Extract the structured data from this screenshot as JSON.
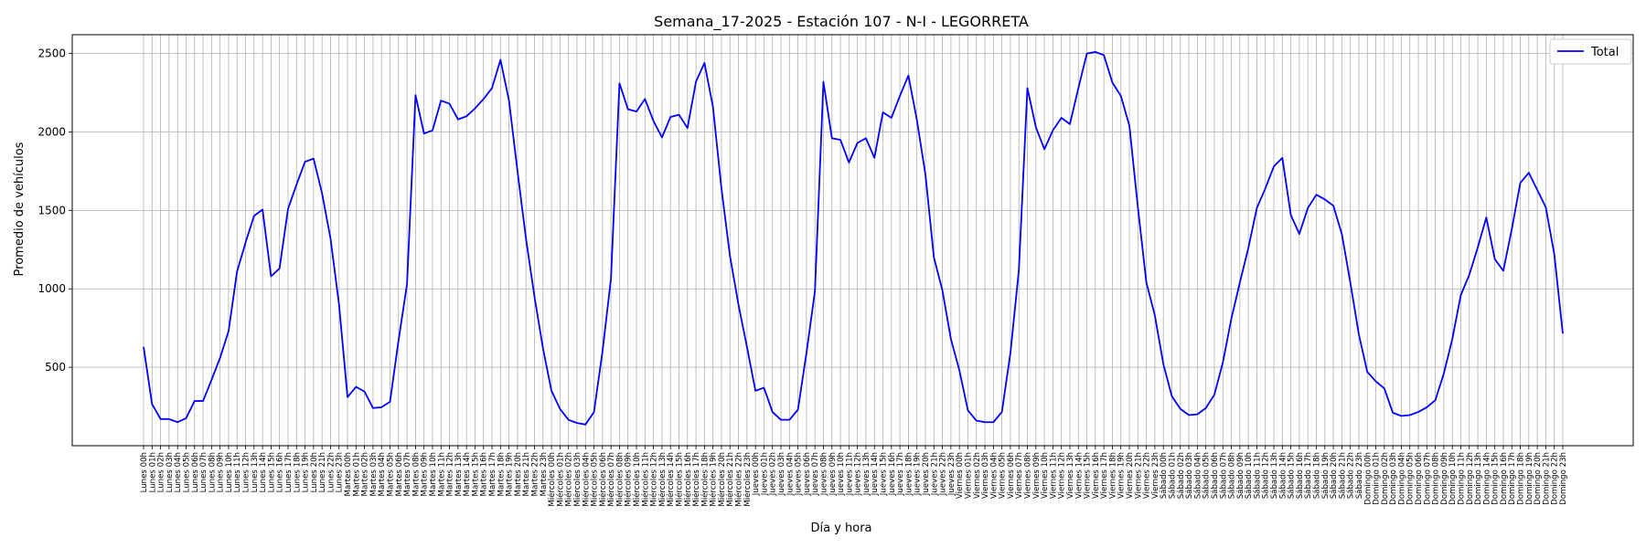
{
  "chart_data": {
    "type": "line",
    "title": "Semana_17-2025 - Estación 107 - N-I  - LEGORRETA",
    "xlabel": "Día y hora",
    "ylabel": "Promedio de vehículos",
    "ylim": [
      0,
      2620
    ],
    "yticks": [
      500,
      1000,
      1500,
      2000,
      2500
    ],
    "grid": true,
    "legend": "top-right",
    "days": [
      "Lunes",
      "Martes",
      "Miércoles",
      "Jueves",
      "Viernes",
      "Sábado",
      "Domingo"
    ],
    "series": [
      {
        "name": "Total",
        "color": "#0000ff",
        "values": [
          630,
          265,
          170,
          170,
          150,
          175,
          285,
          285,
          420,
          560,
          730,
          1110,
          1295,
          1465,
          1505,
          1080,
          1130,
          1510,
          1665,
          1810,
          1830,
          1610,
          1320,
          900,
          310,
          375,
          345,
          240,
          245,
          280,
          670,
          1030,
          2235,
          1990,
          2010,
          2200,
          2180,
          2080,
          2100,
          2150,
          2210,
          2280,
          2460,
          2200,
          1750,
          1320,
          950,
          620,
          350,
          235,
          165,
          145,
          135,
          215,
          600,
          1065,
          2310,
          2145,
          2130,
          2210,
          2070,
          1965,
          2095,
          2110,
          2025,
          2320,
          2440,
          2160,
          1640,
          1210,
          900,
          630,
          350,
          370,
          215,
          165,
          165,
          230,
          590,
          985,
          2320,
          1960,
          1950,
          1805,
          1930,
          1960,
          1835,
          2125,
          2090,
          2230,
          2360,
          2075,
          1730,
          1200,
          990,
          680,
          480,
          225,
          160,
          150,
          150,
          215,
          590,
          1120,
          2280,
          2030,
          1890,
          2010,
          2090,
          2050,
          2280,
          2500,
          2510,
          2490,
          2315,
          2230,
          2040,
          1520,
          1040,
          830,
          520,
          315,
          235,
          195,
          200,
          240,
          325,
          530,
          810,
          1040,
          1260,
          1515,
          1640,
          1780,
          1835,
          1470,
          1350,
          1515,
          1600,
          1570,
          1530,
          1350,
          1040,
          710,
          470,
          410,
          365,
          210,
          190,
          195,
          215,
          245,
          290,
          460,
          680,
          960,
          1090,
          1265,
          1455,
          1190,
          1115,
          1380,
          1675,
          1740,
          1630,
          1520,
          1220,
          715
        ]
      }
    ]
  }
}
